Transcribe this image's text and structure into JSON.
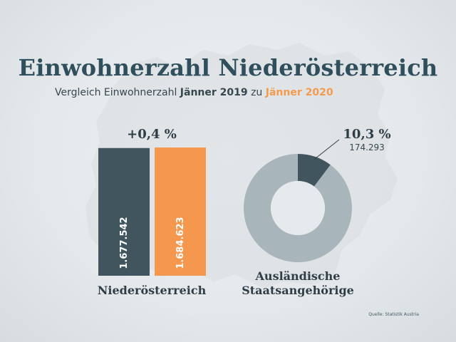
{
  "title": "Einwohnerzahl Niederösterreich",
  "subtitle": {
    "prefix": "Vergleich Einwohnerzahl ",
    "year_a": "Jänner 2019",
    "mid": " zu ",
    "year_b": "Jänner 2020"
  },
  "source": "Quelle: Statistik Austria",
  "colors": {
    "title": "#2f4f5c",
    "bar_2019": "#41555e",
    "bar_2020": "#f5974c",
    "donut_highlight": "#41555e",
    "donut_rest": "#a8b5ba",
    "highlight_text": "#f39a4c"
  },
  "chart_data": [
    {
      "type": "bar",
      "categories": [
        "Jänner 2019",
        "Jänner 2020"
      ],
      "values": [
        1677542,
        1684623
      ],
      "value_labels": [
        "1.677.542",
        "1.684.623"
      ],
      "change_label": "+0,4 %",
      "xlabel": "Niederösterreich",
      "ylim": [
        0,
        1684623
      ],
      "grid": false
    },
    {
      "type": "pie",
      "donut": true,
      "slices": [
        {
          "label": "10,3 %",
          "value": 10.3,
          "count": "174.293"
        },
        {
          "value": 89.7
        }
      ],
      "label": "Ausländische Staatsangehörige",
      "label_lines": [
        "Ausländische",
        "Staatsangehörige"
      ]
    }
  ]
}
